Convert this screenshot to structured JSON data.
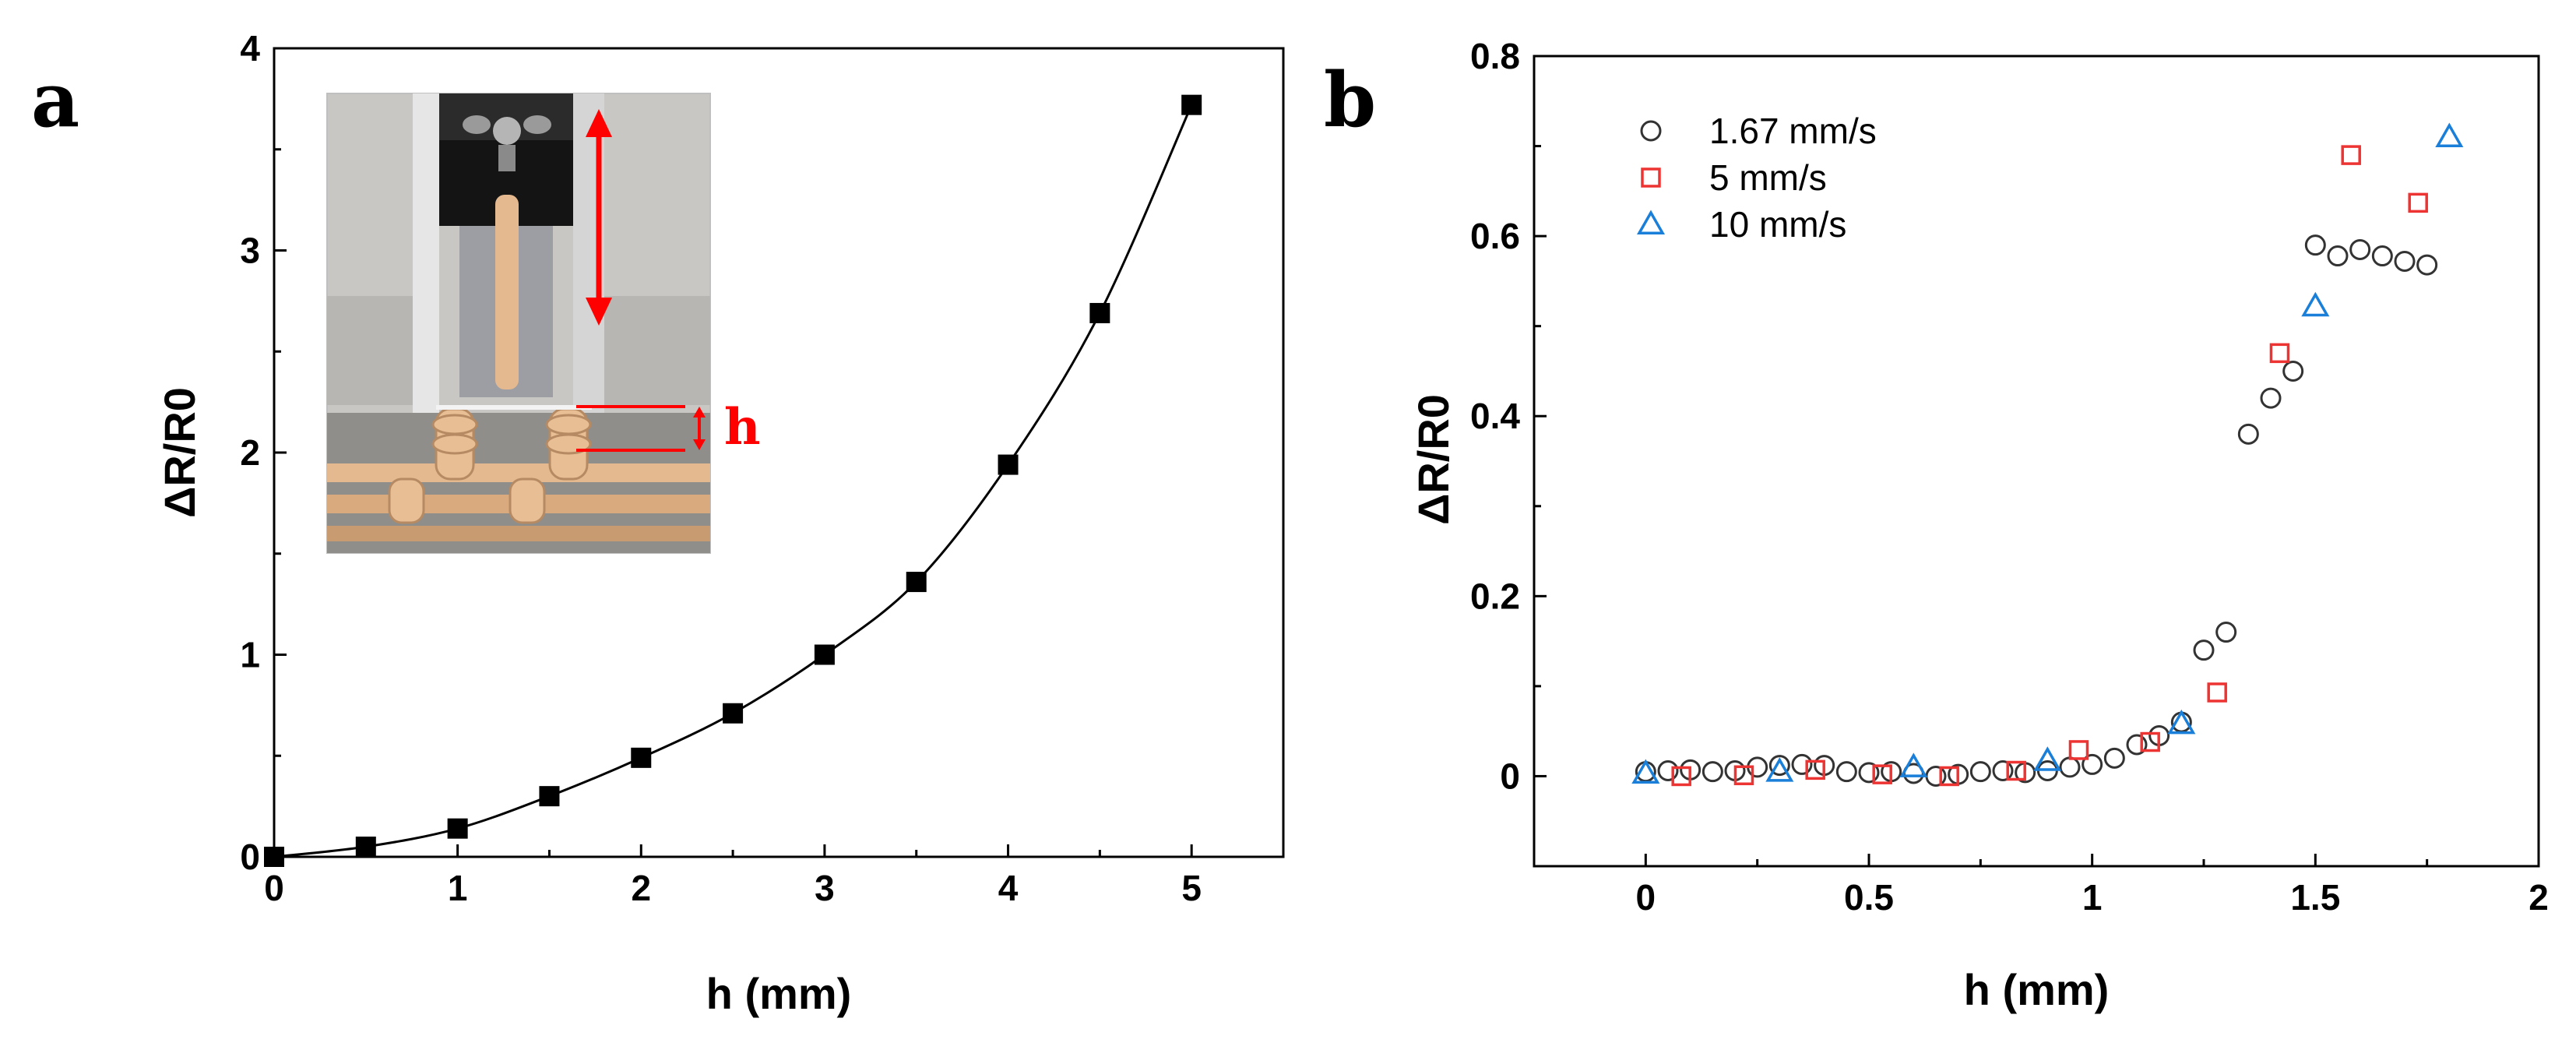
{
  "colors": {
    "series_a": "#000000",
    "gray_marker": "#333333",
    "red_marker": "#ee3333",
    "blue_marker": "#1a7fd9",
    "inset_red": "#ff0000"
  },
  "chart_data": [
    {
      "panel": "a",
      "type": "line",
      "xlabel": "h (mm)",
      "ylabel": "ΔR/R0",
      "xlim": [
        0,
        5.5
      ],
      "ylim": [
        0,
        4
      ],
      "xticks": [
        0,
        1,
        2,
        3,
        4,
        5
      ],
      "yticks": [
        0,
        1,
        2,
        3,
        4
      ],
      "series": [
        {
          "name": "ΔR/R0",
          "marker": "filled-square",
          "x": [
            0,
            0.5,
            1,
            1.5,
            2,
            2.5,
            3,
            3.5,
            4,
            4.5,
            5
          ],
          "y": [
            0,
            0.05,
            0.14,
            0.3,
            0.49,
            0.71,
            1.0,
            1.36,
            1.94,
            2.69,
            3.72
          ]
        }
      ],
      "inset": {
        "label": "h",
        "description_icon": "photo-of-bending-test-setup"
      }
    },
    {
      "panel": "b",
      "type": "scatter",
      "xlabel": "h (mm)",
      "ylabel": "ΔR/R0",
      "xlim": [
        -0.25,
        2
      ],
      "ylim": [
        -0.1,
        0.8
      ],
      "xticks": [
        0,
        0.5,
        1,
        1.5,
        2
      ],
      "xtick_labels": [
        "0",
        "0.5",
        "1",
        "1.5",
        "2"
      ],
      "yticks": [
        0,
        0.2,
        0.4,
        0.6,
        0.8
      ],
      "ytick_labels": [
        "0",
        "0.2",
        "0.4",
        "0.6",
        "0.8"
      ],
      "legend": "top-left",
      "series": [
        {
          "name": "1.67 mm/s",
          "marker": "open-circle",
          "x": [
            0,
            0.05,
            0.1,
            0.15,
            0.2,
            0.25,
            0.3,
            0.35,
            0.4,
            0.45,
            0.5,
            0.55,
            0.6,
            0.65,
            0.7,
            0.75,
            0.8,
            0.85,
            0.9,
            0.95,
            1.0,
            1.05,
            1.1,
            1.15,
            1.2,
            1.25,
            1.3,
            1.35,
            1.4,
            1.45,
            1.5,
            1.55,
            1.6,
            1.65,
            1.7,
            1.75
          ],
          "y": [
            0.005,
            0.006,
            0.007,
            0.005,
            0.006,
            0.01,
            0.012,
            0.013,
            0.012,
            0.005,
            0.004,
            0.005,
            0.003,
            0.0,
            0.002,
            0.005,
            0.006,
            0.004,
            0.006,
            0.01,
            0.013,
            0.02,
            0.035,
            0.045,
            0.06,
            0.14,
            0.16,
            0.38,
            0.42,
            0.45,
            0.59,
            0.578,
            0.585,
            0.578,
            0.572,
            0.568
          ]
        },
        {
          "name": "5 mm/s",
          "marker": "open-square",
          "x": [
            0.08,
            0.22,
            0.38,
            0.53,
            0.68,
            0.83,
            0.97,
            1.13,
            1.28,
            1.42,
            1.58,
            1.73
          ],
          "y": [
            0.0,
            0.001,
            0.007,
            0.002,
            0.0,
            0.006,
            0.029,
            0.038,
            0.093,
            0.47,
            0.69,
            0.637
          ]
        },
        {
          "name": "10 mm/s",
          "marker": "open-triangle",
          "x": [
            0,
            0.3,
            0.6,
            0.9,
            1.2,
            1.5,
            1.8
          ],
          "y": [
            0.003,
            0.005,
            0.01,
            0.017,
            0.058,
            0.522,
            0.71
          ]
        }
      ]
    }
  ],
  "labels": {
    "panel_a": "a",
    "panel_b": "b"
  }
}
